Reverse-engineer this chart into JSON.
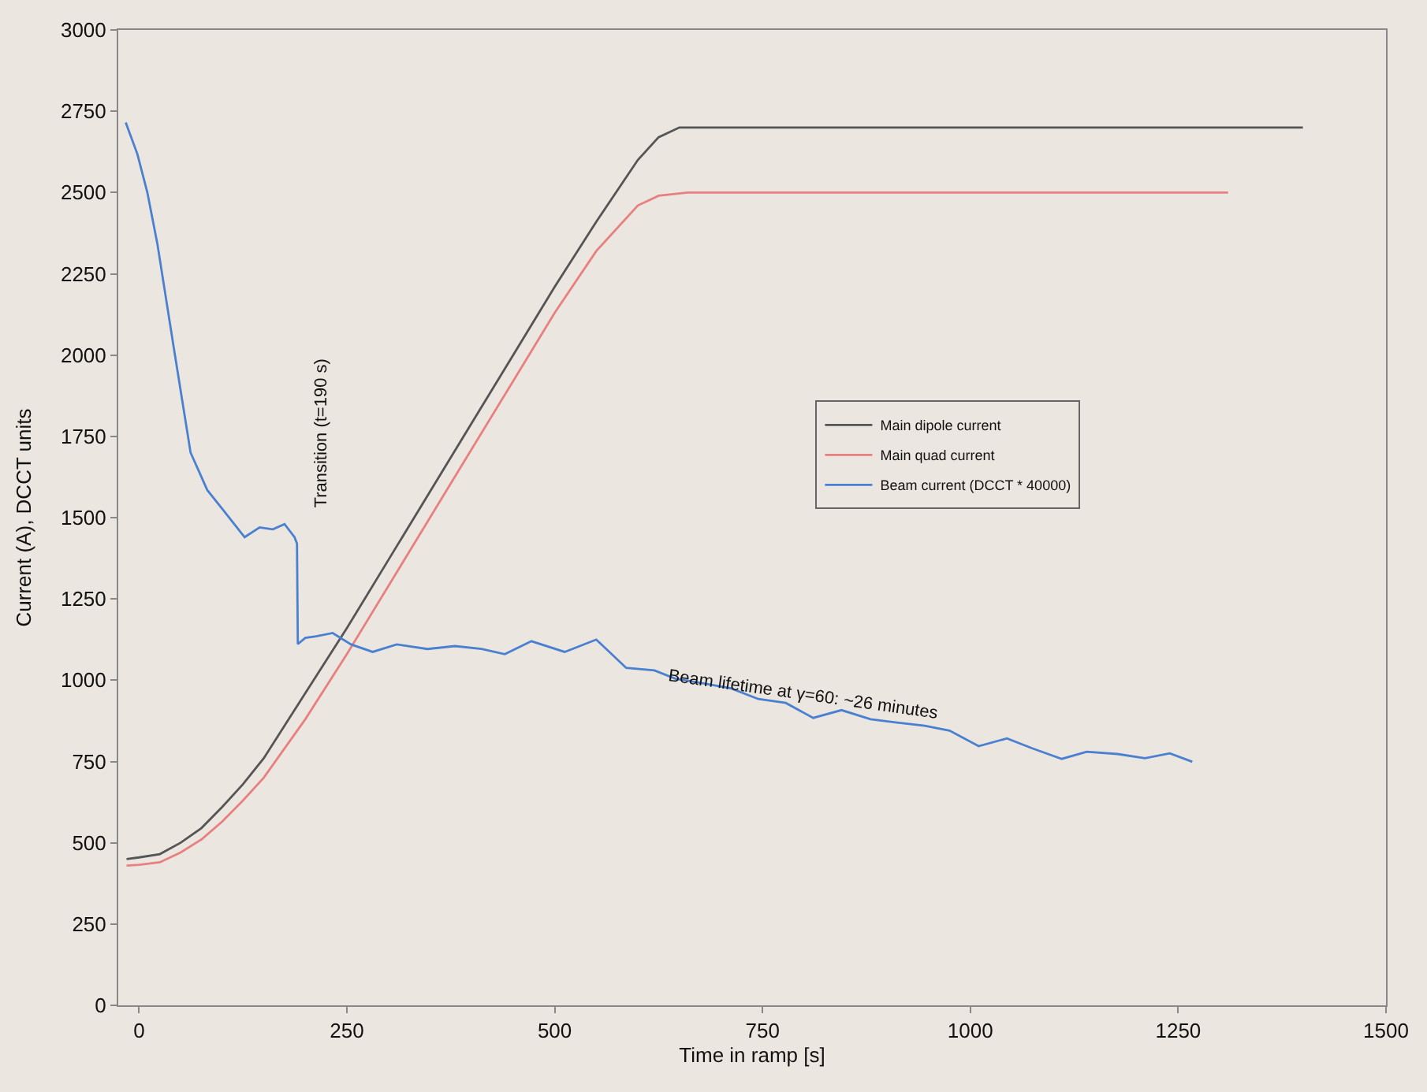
{
  "chart_data": {
    "type": "line",
    "xlabel": "Time in ramp [s]",
    "ylabel": "Current (A), DCCT units",
    "xlim": [
      -25,
      1500
    ],
    "ylim": [
      0,
      3000
    ],
    "xticks": [
      0,
      250,
      500,
      750,
      1000,
      1250,
      1500
    ],
    "yticks": [
      0,
      250,
      500,
      750,
      1000,
      1250,
      1500,
      1750,
      2000,
      2250,
      2500,
      2750,
      3000
    ],
    "grid": false,
    "legend": "right",
    "marker": "none",
    "line_style": "solid",
    "series": [
      {
        "name": "Main dipole current",
        "color": "#555555",
        "x": [
          -15,
          0,
          25,
          50,
          75,
          100,
          125,
          150,
          200,
          250,
          300,
          350,
          400,
          450,
          500,
          550,
          600,
          625,
          650,
          700,
          1400
        ],
        "values": [
          450,
          455,
          465,
          500,
          545,
          610,
          680,
          760,
          960,
          1160,
          1370,
          1580,
          1790,
          2000,
          2210,
          2410,
          2600,
          2670,
          2700,
          2700,
          2700
        ]
      },
      {
        "name": "Main quad current",
        "color": "#e88080",
        "x": [
          -15,
          0,
          25,
          50,
          75,
          100,
          125,
          150,
          200,
          250,
          300,
          350,
          400,
          450,
          500,
          550,
          600,
          625,
          660,
          1310
        ],
        "values": [
          430,
          432,
          440,
          470,
          510,
          565,
          630,
          700,
          880,
          1080,
          1290,
          1500,
          1710,
          1920,
          2130,
          2320,
          2460,
          2490,
          2500,
          2500
        ]
      },
      {
        "name": "Beam current (DCCT * 40000)",
        "color": "#4a80d0",
        "x": [
          -16,
          -2,
          10,
          22,
          42,
          62,
          82,
          102,
          127,
          145,
          161,
          175,
          187,
          190,
          191,
          200,
          213,
          233,
          255,
          281,
          310,
          347,
          380,
          412,
          440,
          472,
          512,
          550,
          586,
          620,
          645,
          679,
          712,
          745,
          778,
          811,
          845,
          880,
          910,
          945,
          975,
          1010,
          1044,
          1075,
          1110,
          1140,
          1177,
          1210,
          1240,
          1267
        ],
        "values": [
          2715,
          2618,
          2500,
          2343,
          2019,
          1700,
          1585,
          1521,
          1440,
          1470,
          1464,
          1480,
          1440,
          1420,
          1111,
          1130,
          1135,
          1145,
          1110,
          1087,
          1110,
          1096,
          1105,
          1096,
          1080,
          1120,
          1087,
          1125,
          1038,
          1030,
          1005,
          990,
          975,
          942,
          930,
          884,
          908,
          880,
          870,
          860,
          845,
          797,
          821,
          790,
          758,
          780,
          773,
          760,
          775,
          749
        ]
      }
    ],
    "annotations": [
      "Transition (t=190 s)",
      "Beam lifetime at γ=60: ~26 minutes"
    ]
  }
}
